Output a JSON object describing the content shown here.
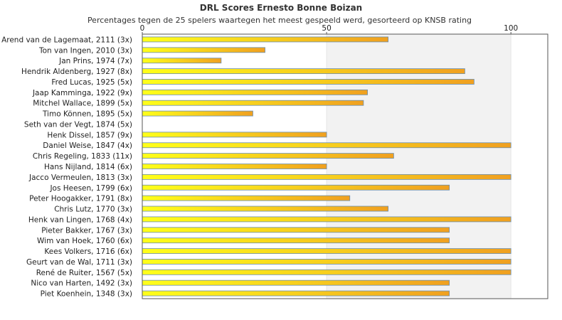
{
  "chart_data": {
    "type": "bar",
    "orientation": "horizontal",
    "title": "DRL Scores Ernesto Bonne Boizan",
    "subtitle": "Percentages tegen de 25 spelers waartegen het meest gespeeld werd, gesorteerd op KNSB rating",
    "categories": [
      "Arend van de Lagemaat, 2111 (3x)",
      "Ton van Ingen, 2010 (3x)",
      "Jan Prins, 1974 (7x)",
      "Hendrik Aldenberg, 1927 (8x)",
      "Fred Lucas, 1925 (5x)",
      "Jaap Kamminga, 1922 (9x)",
      "Mitchel Wallace, 1899 (5x)",
      "Timo Können, 1895 (5x)",
      "Seth van der Vegt, 1874 (5x)",
      "Henk Dissel, 1857 (9x)",
      "Daniel Weise, 1847 (4x)",
      "Chris Regeling, 1833 (11x)",
      "Hans Nijland, 1814 (6x)",
      "Jacco Vermeulen, 1813 (3x)",
      "Jos Heesen, 1799 (6x)",
      "Peter Hoogakker, 1791 (8x)",
      "Chris Lutz, 1770 (3x)",
      "Henk van Lingen, 1768 (4x)",
      "Pieter Bakker, 1767 (3x)",
      "Wim van Hoek, 1760 (6x)",
      "Kees Volkers, 1716 (6x)",
      "Geurt van de Wal, 1711 (3x)",
      "René de Ruiter, 1567 (5x)",
      "Nico van Harten, 1492 (3x)",
      "Piet Koenhein, 1348 (3x)"
    ],
    "values": [
      66.7,
      33.3,
      21.4,
      87.5,
      90.0,
      61.1,
      60.0,
      30.0,
      0,
      50.0,
      100,
      68.2,
      50.0,
      100,
      83.3,
      56.3,
      66.7,
      100,
      83.3,
      83.3,
      100,
      100,
      100,
      83.3,
      83.3
    ],
    "xlim": [
      0,
      110
    ],
    "xticks": [
      0,
      50,
      100
    ],
    "xtick_labels": [
      "0",
      "50",
      "100"
    ],
    "shaded_bands": [
      [
        50,
        100
      ]
    ],
    "grid": false,
    "legend": "none",
    "colors": {
      "bar_start": "#ffff1a",
      "bar_end": "#f0a020",
      "bar_edge": "#6a8fb0",
      "band": "#f2f2f2",
      "axis": "#555555"
    }
  }
}
